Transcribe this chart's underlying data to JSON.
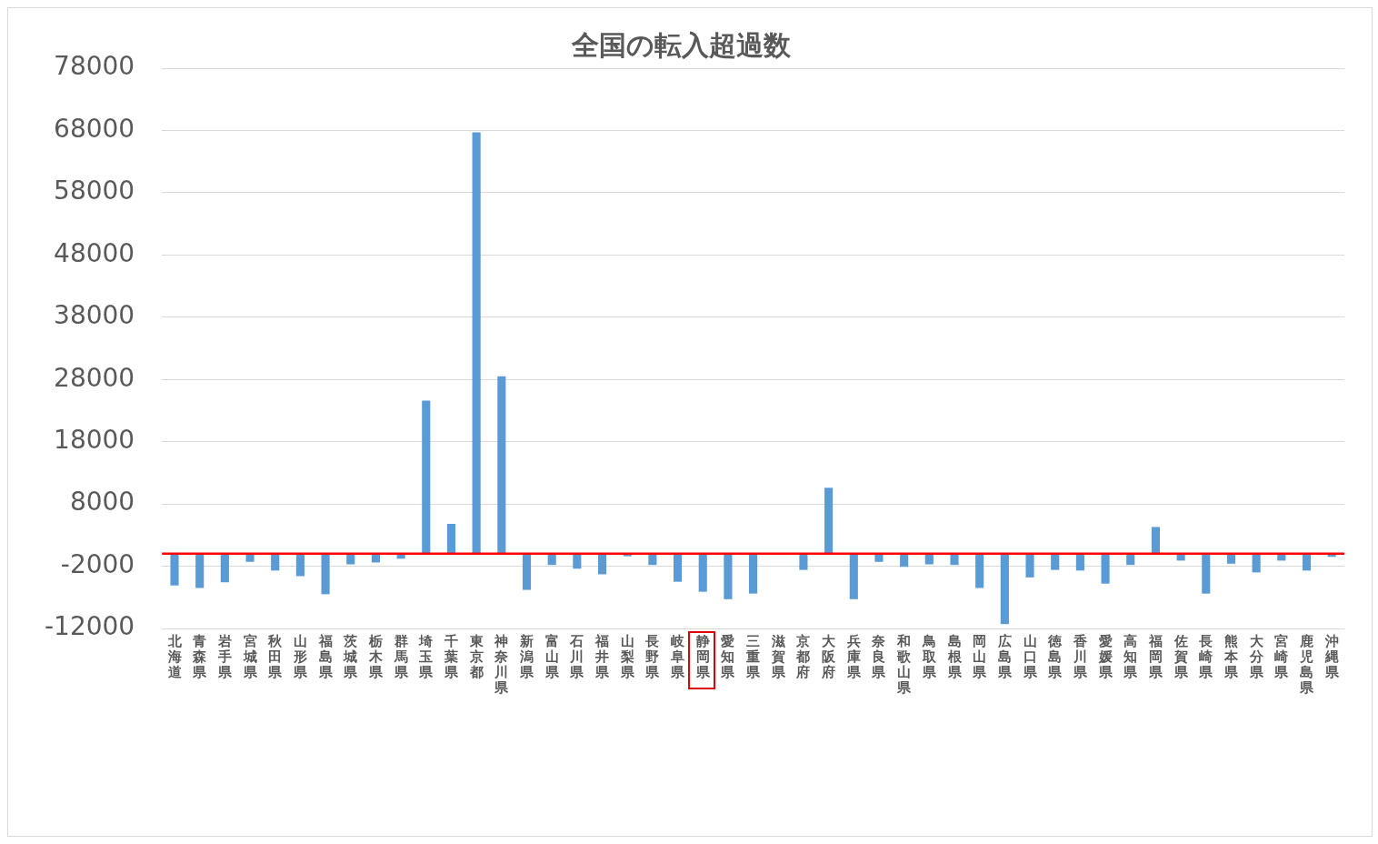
{
  "chart_data": {
    "type": "bar",
    "title": "全国の転入超過数",
    "categories": [
      "北海道",
      "青森県",
      "岩手県",
      "宮城県",
      "秋田県",
      "山形県",
      "福島県",
      "茨城県",
      "栃木県",
      "群馬県",
      "埼玉県",
      "千葉県",
      "東京都",
      "神奈川県",
      "新潟県",
      "富山県",
      "石川県",
      "福井県",
      "山梨県",
      "長野県",
      "岐阜県",
      "静岡県",
      "愛知県",
      "三重県",
      "滋賀県",
      "京都府",
      "大阪府",
      "兵庫県",
      "奈良県",
      "和歌山県",
      "鳥取県",
      "島根県",
      "岡山県",
      "広島県",
      "山口県",
      "徳島県",
      "香川県",
      "愛媛県",
      "高知県",
      "福岡県",
      "佐賀県",
      "長崎県",
      "熊本県",
      "大分県",
      "宮崎県",
      "鹿児島県",
      "沖縄県"
    ],
    "values": [
      -5100,
      -5500,
      -4600,
      -1300,
      -2700,
      -3600,
      -6500,
      -1700,
      -1400,
      -800,
      24600,
      4800,
      67700,
      28500,
      -5800,
      -1800,
      -2400,
      -3300,
      -400,
      -1800,
      -4500,
      -6100,
      -7300,
      -6400,
      0,
      -2600,
      10600,
      -7300,
      -1300,
      -2100,
      -1700,
      -1800,
      -5500,
      -11300,
      -3800,
      -2600,
      -2700,
      -4800,
      -1800,
      4300,
      -1100,
      -6400,
      -1600,
      -3000,
      -1100,
      -2700,
      -500
    ],
    "color": "#5b9bd5",
    "ylim": [
      -12000,
      78000
    ],
    "yticks": [
      -12000,
      -2000,
      8000,
      18000,
      28000,
      38000,
      48000,
      58000,
      68000,
      78000
    ],
    "grid": "y",
    "legend": false,
    "ref_lines": [
      {
        "axis": "y",
        "value": 0,
        "color": "#ff0000"
      }
    ]
  }
}
